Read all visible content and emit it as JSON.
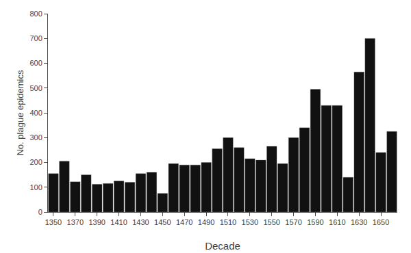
{
  "chart_data": {
    "type": "bar",
    "categories": [
      "1350",
      null,
      "1370",
      null,
      "1390",
      null,
      "1410",
      null,
      "1430",
      null,
      "1450",
      null,
      "1470",
      null,
      "1490",
      null,
      "1510",
      null,
      "1530",
      null,
      "1550",
      null,
      "1570",
      null,
      "1590",
      null,
      "1610",
      null,
      "1630",
      null,
      "1650",
      null
    ],
    "values": [
      155,
      205,
      122,
      150,
      112,
      115,
      125,
      120,
      155,
      160,
      75,
      195,
      190,
      190,
      200,
      255,
      300,
      260,
      215,
      210,
      265,
      195,
      300,
      340,
      495,
      430,
      430,
      140,
      565,
      700,
      240,
      325
    ],
    "color": "#111111",
    "xlabel": "Decade",
    "ylabel": "No. plague epidemics",
    "ylim": [
      0,
      800
    ],
    "yticks": [
      0,
      100,
      200,
      300,
      400,
      500,
      600,
      700,
      800
    ],
    "grid": false
  }
}
